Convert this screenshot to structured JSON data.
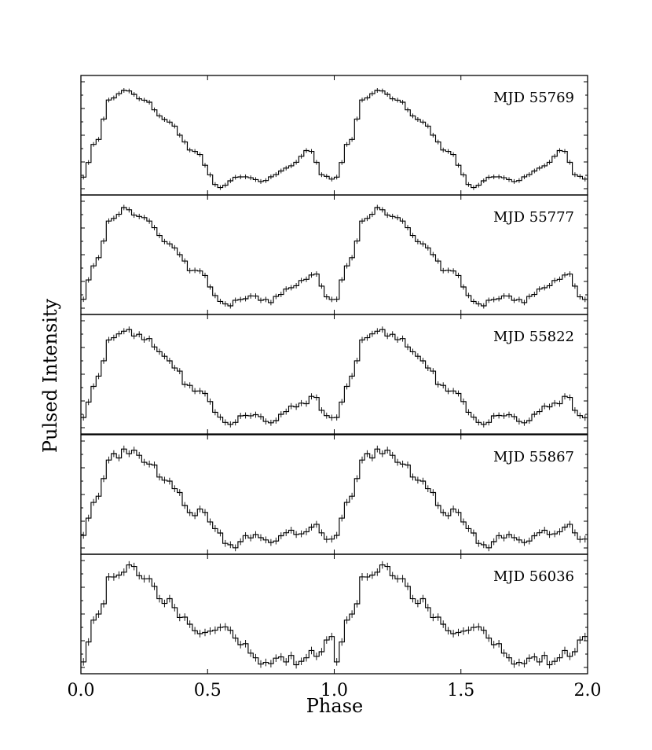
{
  "chart_data": {
    "type": "line",
    "xlabel": "Phase",
    "ylabel": "Pulsed Intensity",
    "xlim": [
      0.0,
      2.0
    ],
    "x_tick_labels": [
      "0.0",
      "0.5",
      "1.0",
      "1.5",
      "2.0"
    ],
    "x_ticks": [
      0.0,
      0.5,
      1.0,
      1.5,
      2.0
    ],
    "y_tick_labels_shown": false,
    "phase_bin_width": 0.02,
    "phase_bins_per_cycle": 50,
    "cycles_shown": 2,
    "style": "step histogram with error bars",
    "line_color": "#000000",
    "profile_shape_keypoints": [
      {
        "phase": 0.0,
        "level": 0.08
      },
      {
        "phase": 0.06,
        "level": 0.48
      },
      {
        "phase": 0.12,
        "level": 0.95
      },
      {
        "phase": 0.18,
        "level": 1.0
      },
      {
        "phase": 0.25,
        "level": 0.92
      },
      {
        "phase": 0.34,
        "level": 0.7
      },
      {
        "phase": 0.45,
        "level": 0.38
      },
      {
        "phase": 0.55,
        "level": 0.02
      },
      {
        "phase": 0.62,
        "level": 0.12
      },
      {
        "phase": 0.72,
        "level": 0.08
      },
      {
        "phase": 0.82,
        "level": 0.22
      },
      {
        "phase": 0.9,
        "level": 0.38
      },
      {
        "phase": 0.96,
        "level": 0.12
      },
      {
        "phase": 1.0,
        "level": 0.08
      }
    ],
    "series": [
      {
        "name": "MJD 55769",
        "peak_phase": 0.18,
        "min_phase": 0.55,
        "secondary_peak_phase": 0.9,
        "secondary_level": 0.4
      },
      {
        "name": "MJD 55777",
        "peak_phase": 0.18,
        "min_phase": 0.58,
        "secondary_peak_phase": 0.95,
        "secondary_level": 0.36
      },
      {
        "name": "MJD 55822",
        "peak_phase": 0.18,
        "min_phase": 0.59,
        "secondary_peak_phase": 0.94,
        "secondary_level": 0.32
      },
      {
        "name": "MJD 55867",
        "peak_phase": 0.2,
        "min_phase": 0.6,
        "secondary_peak_phase": 0.92,
        "secondary_level": 0.24
      },
      {
        "name": "MJD 56036",
        "peak_phase": 0.21,
        "min_phase": 0.73,
        "secondary_peak_phase": 0.93,
        "secondary_level": 0.3
      }
    ]
  }
}
